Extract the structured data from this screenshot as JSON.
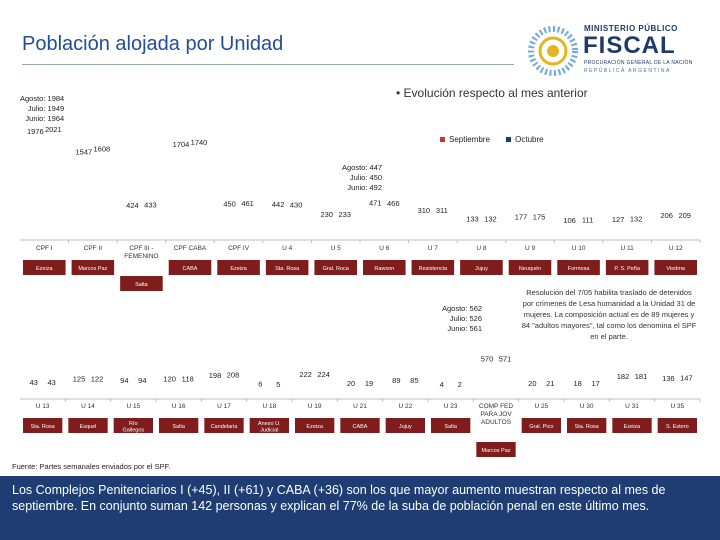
{
  "header": {
    "title": "Población alojada por Unidad"
  },
  "logo": {
    "line1": "MINISTERIO PÚBLICO",
    "line2": "FISCAL",
    "line3": "PROCURACIÓN GENERAL DE LA NACIÓN",
    "line4": "REPÚBLICA ARGENTINA"
  },
  "subtitle": "Evolución respecto al mes anterior",
  "legend": {
    "sep": "Septiembre",
    "oct": "Octubre"
  },
  "colors": {
    "sep": "#c0392b",
    "oct": "#1f3d73",
    "label_box": "#7f1d1d",
    "footer": "#1f3d73"
  },
  "annotations": {
    "a1": "Agosto: 1984\nJulio: 1949\nJunio: 1964",
    "a2": "Agosto: 447\nJulio: 450\nJunio: 492",
    "a3": "Agosto: 562\nJulio: 526\nJunio: 561"
  },
  "note": "Resolución del 7/05 habilita traslado de detenidos por crímenes de Lesa humanidad a la Unidad 31 de mujeres. La composición actual es de 89 mujeres y 84 \"adultos mayores\", tal como los denomina el SPF en el parte.",
  "source": "Fuente: Partes semanales enviados por el SPF.",
  "footer": "Los Complejos Penitenciarios I (+45), II (+61) y CABA (+36) son los que mayor aumento muestran respecto al mes de septiembre. En conjunto suman 142 personas y explican el 77% de la suba de población penal en este último mes.",
  "chart_data": [
    {
      "type": "bar",
      "title": "Evolución respecto al mes anterior",
      "series_names": [
        "Septiembre",
        "Octubre"
      ],
      "categories": [
        "CPF I",
        "CPF II",
        "CPF III - FEMENINO",
        "CPF CABA",
        "CPF IV",
        "U 4",
        "U 5",
        "U 6",
        "U 7",
        "U 8",
        "U 9",
        "U 10",
        "U 11",
        "U 12"
      ],
      "locations": [
        "Ezeiza",
        "Marcos Paz",
        "Salta",
        "CABA",
        "Ezeiza",
        "Sta. Rosa",
        "Gral. Roca",
        "Rawson",
        "Resistencia",
        "Jujuy",
        "Neuquén",
        "Formosa",
        "P. S. Peña",
        "Viedma"
      ],
      "series": [
        {
          "name": "Septiembre",
          "values": [
            1976,
            1547,
            424,
            1704,
            450,
            442,
            230,
            471,
            310,
            133,
            177,
            106,
            127,
            206
          ]
        },
        {
          "name": "Octubre",
          "values": [
            2021,
            1608,
            433,
            1740,
            461,
            430,
            233,
            466,
            311,
            132,
            175,
            111,
            132,
            209
          ]
        }
      ]
    },
    {
      "type": "bar",
      "series_names": [
        "Septiembre",
        "Octubre"
      ],
      "categories": [
        "U 13",
        "U 14",
        "U 15",
        "U 16",
        "U 17",
        "U 18",
        "U 19",
        "U 21",
        "U 22",
        "U 23",
        "COMP FED PARA JOV ADULTOS",
        "U 25",
        "U 30",
        "U 31",
        "U 35"
      ],
      "locations": [
        "Sta. Rosa",
        "Esquel",
        "Río Gallegos",
        "Salta",
        "Candelaria",
        "Anexo U. Judicial",
        "Ezeiza",
        "CABA",
        "Jujuy",
        "Salta",
        "Marcos Paz",
        "Gral. Pico",
        "Sta. Rosa",
        "Ezeiza",
        "S. Estero"
      ],
      "series": [
        {
          "name": "Septiembre",
          "values": [
            43,
            125,
            94,
            120,
            198,
            6,
            222,
            20,
            89,
            4,
            570,
            20,
            18,
            182,
            136
          ]
        },
        {
          "name": "Octubre",
          "values": [
            43,
            122,
            94,
            118,
            208,
            5,
            224,
            19,
            85,
            2,
            571,
            21,
            17,
            181,
            147
          ]
        }
      ]
    }
  ]
}
